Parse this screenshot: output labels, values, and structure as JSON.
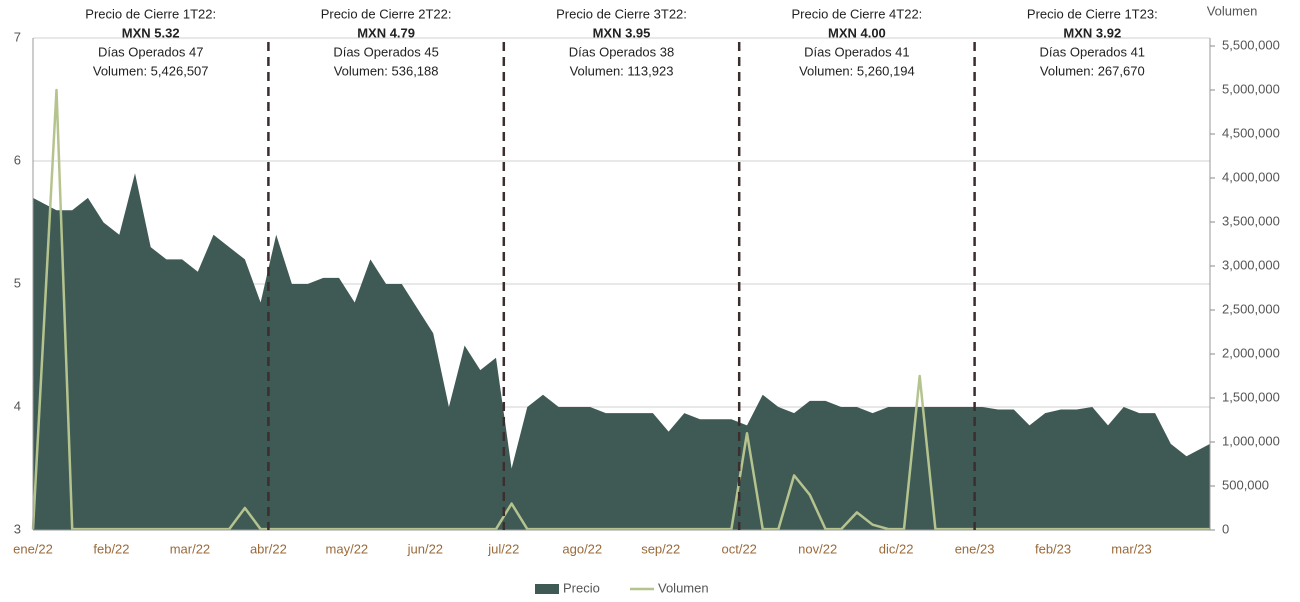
{
  "chart_data": {
    "type": "area-line",
    "y2_label": "Volumen",
    "categories": [
      "ene/22",
      null,
      null,
      null,
      null,
      "feb/22",
      null,
      null,
      null,
      null,
      "mar/22",
      null,
      null,
      null,
      null,
      "abr/22",
      null,
      null,
      null,
      null,
      "may/22",
      null,
      null,
      null,
      null,
      "jun/22",
      null,
      null,
      null,
      null,
      "jul/22",
      null,
      null,
      null,
      null,
      "ago/22",
      null,
      null,
      null,
      null,
      "sep/22",
      null,
      null,
      null,
      null,
      "oct/22",
      null,
      null,
      null,
      null,
      "nov/22",
      null,
      null,
      null,
      null,
      "dic/22",
      null,
      null,
      null,
      null,
      "ene/23",
      null,
      null,
      null,
      null,
      "feb/23",
      null,
      null,
      null,
      null,
      "mar/23",
      null,
      null,
      null,
      null
    ],
    "series": [
      {
        "name": "Precio",
        "color": "#3f5a55",
        "values": [
          5.7,
          5.6,
          5.6,
          5.7,
          5.5,
          5.4,
          5.9,
          5.3,
          5.2,
          5.2,
          5.1,
          5.4,
          5.3,
          5.2,
          4.85,
          5.4,
          5.0,
          5.0,
          5.05,
          5.05,
          4.85,
          5.2,
          5.0,
          5.0,
          4.8,
          4.6,
          4.0,
          4.5,
          4.3,
          4.4,
          3.5,
          4.0,
          4.1,
          4.0,
          4.0,
          4.0,
          3.95,
          3.95,
          3.95,
          3.95,
          3.8,
          3.95,
          3.9,
          3.9,
          3.9,
          3.85,
          4.1,
          4.0,
          3.95,
          4.05,
          4.05,
          4.0,
          4.0,
          3.95,
          4.0,
          4.0,
          4.0,
          4.0,
          4.0,
          4.0,
          4.0,
          3.98,
          3.98,
          3.85,
          3.95,
          3.98,
          3.98,
          4.0,
          3.85,
          4.0,
          3.95,
          3.95,
          3.7,
          3.6,
          3.7
        ]
      },
      {
        "name": "Volumen",
        "color": "#b5c48e",
        "axis": "y2",
        "values": [
          10000,
          5000000,
          10000,
          10000,
          10000,
          10000,
          10000,
          10000,
          10000,
          10000,
          10000,
          10000,
          10000,
          250000,
          10000,
          10000,
          10000,
          10000,
          10000,
          10000,
          10000,
          10000,
          10000,
          10000,
          10000,
          10000,
          10000,
          10000,
          10000,
          10000,
          300000,
          10000,
          10000,
          10000,
          10000,
          10000,
          10000,
          10000,
          10000,
          10000,
          10000,
          10000,
          10000,
          10000,
          10000,
          1100000,
          10000,
          10000,
          620000,
          400000,
          10000,
          10000,
          200000,
          60000,
          10000,
          10000,
          1750000,
          10000,
          10000,
          10000,
          10000,
          10000,
          10000,
          10000,
          10000,
          10000,
          10000,
          10000,
          10000,
          10000,
          10000,
          10000,
          10000,
          10000,
          10000
        ]
      }
    ],
    "ylim": [
      3,
      7
    ],
    "yticks": [
      3,
      4,
      5,
      6,
      7
    ],
    "y2lim": [
      0,
      5500000
    ],
    "y2ticks": [
      0,
      {
        "value": 500000,
        "label": "500,000"
      },
      {
        "value": 1000000,
        "label": "1,000,000"
      },
      {
        "value": 1500000,
        "label": "1,500,000"
      },
      {
        "value": 2000000,
        "label": "2,000,000"
      },
      {
        "value": 2500000,
        "label": "2,500,000"
      },
      {
        "value": 3000000,
        "label": "3,000,000"
      },
      {
        "value": 3500000,
        "label": "3,500,000"
      },
      {
        "value": 4000000,
        "label": "4,000,000"
      },
      {
        "value": 4500000,
        "label": "4,500,000"
      },
      {
        "value": 5000000,
        "label": "5,000,000"
      },
      {
        "value": 5500000,
        "label": "5,500,000"
      }
    ],
    "grid": true,
    "legend": "bottom",
    "annotations": [
      {
        "lines": [
          "Precio de Cierre 1T22:",
          "MXN 5.32",
          "Días Operados 47",
          "Volumen:  5,426,507"
        ]
      },
      {
        "lines": [
          "Precio de Cierre 2T22:",
          "MXN 4.79",
          "Días Operados 45",
          "Volumen:  536,188"
        ]
      },
      {
        "lines": [
          "Precio de Cierre 3T22:",
          "MXN 3.95",
          "Días Operados 38",
          "Volumen:  113,923"
        ]
      },
      {
        "lines": [
          "Precio de Cierre 4T22:",
          "MXN 4.00",
          "Días Operados 41",
          "Volumen:  5,260,194"
        ]
      },
      {
        "lines": [
          "Precio de Cierre 1T23:",
          "MXN 3.92",
          "Días Operados 41",
          "Volumen:  267,670"
        ]
      }
    ]
  }
}
